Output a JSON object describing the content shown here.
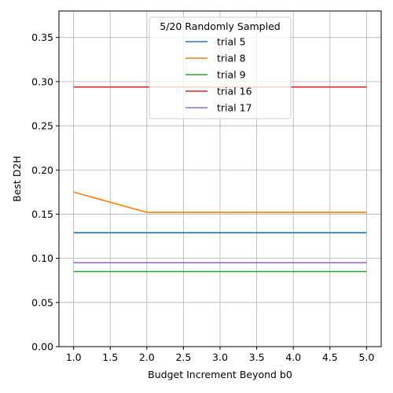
{
  "chart_data": {
    "type": "line",
    "x": [
      1.0,
      2.0,
      3.0,
      4.0,
      5.0
    ],
    "series": [
      {
        "name": "trial 5",
        "color": "#1f77b4",
        "values": [
          0.129,
          0.129,
          0.129,
          0.129,
          0.129
        ]
      },
      {
        "name": "trial 8",
        "color": "#ff7f0e",
        "values": [
          0.175,
          0.152,
          0.152,
          0.152,
          0.152
        ]
      },
      {
        "name": "trial 9",
        "color": "#2ca02c",
        "values": [
          0.085,
          0.085,
          0.085,
          0.085,
          0.085
        ]
      },
      {
        "name": "trial 16",
        "color": "#d62728",
        "values": [
          0.294,
          0.294,
          0.294,
          0.294,
          0.294
        ]
      },
      {
        "name": "trial 17",
        "color": "#9467bd",
        "values": [
          0.095,
          0.095,
          0.095,
          0.095,
          0.095
        ]
      }
    ],
    "legend_title": "5/20 Randomly Sampled",
    "legend_placement": "top-center",
    "xlabel": "Budget Increment Beyond b0",
    "ylabel": "Best D2H",
    "xlim": [
      0.8,
      5.2
    ],
    "ylim": [
      0.0,
      0.38
    ],
    "xticks": [
      "1.0",
      "1.5",
      "2.0",
      "2.5",
      "3.0",
      "3.5",
      "4.0",
      "4.5",
      "5.0"
    ],
    "yticks": [
      "0.00",
      "0.05",
      "0.10",
      "0.15",
      "0.20",
      "0.25",
      "0.30",
      "0.35"
    ],
    "grid": true
  }
}
